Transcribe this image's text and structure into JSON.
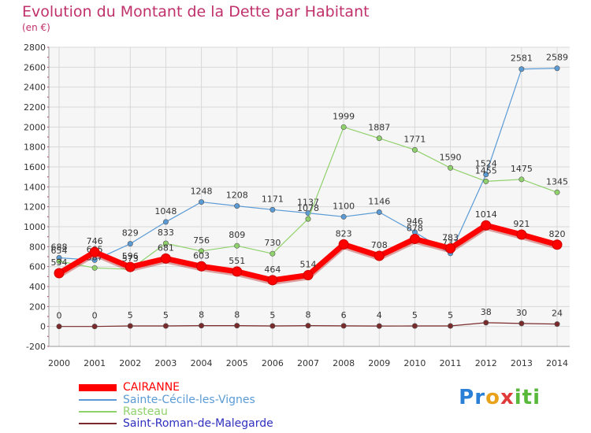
{
  "title": "Evolution du Montant de la Dette par Habitant",
  "subtitle": "(en €)",
  "logo": {
    "text": "Proxiti",
    "letters": [
      "P",
      "r",
      "o",
      "x",
      "i",
      "t",
      "i"
    ],
    "colors": [
      "#2a7fd6",
      "#2a7fd6",
      "#e8a21a",
      "#e03a3a",
      "#58b83a",
      "#58b83a",
      "#58b83a"
    ]
  },
  "chart_data": {
    "type": "line",
    "x": [
      "2000",
      "2001",
      "2002",
      "2003",
      "2004",
      "2005",
      "2006",
      "2007",
      "2008",
      "2009",
      "2010",
      "2011",
      "2012",
      "2013",
      "2014"
    ],
    "ylim": [
      -200,
      2800
    ],
    "yticks": [
      -200,
      0,
      200,
      400,
      600,
      800,
      1000,
      1200,
      1400,
      1600,
      1800,
      2000,
      2200,
      2400,
      2600,
      2800
    ],
    "grid": true,
    "series": [
      {
        "name": "Sainte-Cécile-les-Vignes",
        "color": "#5b9bd5",
        "width": 1.2,
        "values": [
          688,
          665,
          829,
          1048,
          1248,
          1208,
          1171,
          1137,
          1100,
          1146,
          946,
          733,
          1524,
          2581,
          2589
        ],
        "labels": [
          "688",
          "665",
          "829",
          "1048",
          "1248",
          "1208",
          "1171",
          "1137",
          "1100",
          "1146",
          "946",
          "733",
          "1524",
          "2581",
          "2589"
        ]
      },
      {
        "name": "Rasteau",
        "color": "#8fd16b",
        "width": 1.2,
        "values": [
          654,
          587,
          573,
          833,
          756,
          809,
          730,
          1078,
          1999,
          1887,
          1771,
          1590,
          1455,
          1475,
          1345
        ],
        "labels": [
          "654",
          "587",
          "573",
          "833",
          "756",
          "809",
          "730",
          "1078",
          "1999",
          "1887",
          "1771",
          "1590",
          "1455",
          "1475",
          "1345"
        ]
      },
      {
        "name": "Saint-Roman-de-Malegarde",
        "color": "#7a2a2a",
        "width": 1.2,
        "values": [
          0,
          0,
          5,
          5,
          8,
          8,
          5,
          8,
          6,
          4,
          5,
          5,
          38,
          30,
          24
        ],
        "labels": [
          "0",
          "0",
          "5",
          "5",
          "8",
          "8",
          "5",
          "8",
          "6",
          "4",
          "5",
          "5",
          "38",
          "30",
          "24"
        ]
      },
      {
        "name": "CAIRANNE",
        "color": "#ff0000",
        "width": 7,
        "values": [
          534,
          746,
          596,
          681,
          603,
          551,
          464,
          514,
          823,
          708,
          878,
          783,
          1014,
          921,
          820
        ],
        "labels": [
          "534",
          "746",
          "596",
          "681",
          "603",
          "551",
          "464",
          "514",
          "823",
          "708",
          "878",
          "783",
          "1014",
          "921",
          "820"
        ]
      }
    ],
    "legend": [
      {
        "name": "CAIRANNE",
        "color": "#ff0000",
        "thickness": 9
      },
      {
        "name": "Sainte-Cécile-les-Vignes",
        "color": "#5b9bd5",
        "thickness": 2
      },
      {
        "name": "Rasteau",
        "color": "#8fd16b",
        "thickness": 2
      },
      {
        "name": "Saint-Roman-de-Malegarde",
        "color": "#7a2a2a",
        "thickness": 2
      }
    ],
    "legend_position": "bottom-left"
  }
}
